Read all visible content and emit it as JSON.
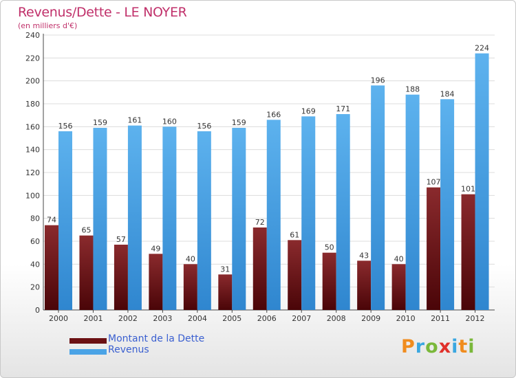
{
  "chart_data": {
    "type": "bar",
    "title": "Revenus/Dette - LE NOYER",
    "subtitle": "(en milliers d'€)",
    "categories": [
      "2000",
      "2001",
      "2002",
      "2003",
      "2004",
      "2005",
      "2006",
      "2007",
      "2008",
      "2009",
      "2010",
      "2011",
      "2012"
    ],
    "series": [
      {
        "name": "Montant de la Dette",
        "color": "#7a1a1d",
        "values": [
          74,
          65,
          57,
          49,
          40,
          31,
          72,
          61,
          50,
          43,
          40,
          107,
          101
        ]
      },
      {
        "name": "Revenus",
        "color": "#4aa3e6",
        "values": [
          156,
          159,
          161,
          160,
          156,
          159,
          166,
          169,
          171,
          196,
          188,
          184,
          224
        ]
      }
    ],
    "ylim": [
      0,
      240
    ],
    "yticks": [
      0,
      20,
      40,
      60,
      80,
      100,
      120,
      140,
      160,
      180,
      200,
      220,
      240
    ],
    "grid": true,
    "legend_position": "bottom-left"
  },
  "branding": {
    "logo_letters": [
      "P",
      "r",
      "o",
      "x",
      "i",
      "t",
      "i"
    ],
    "logo_colors": [
      "#f08c1e",
      "#3aa7e0",
      "#7ab83a",
      "#e0302a",
      "#3aa7e0",
      "#f08c1e",
      "#7ab83a"
    ]
  }
}
